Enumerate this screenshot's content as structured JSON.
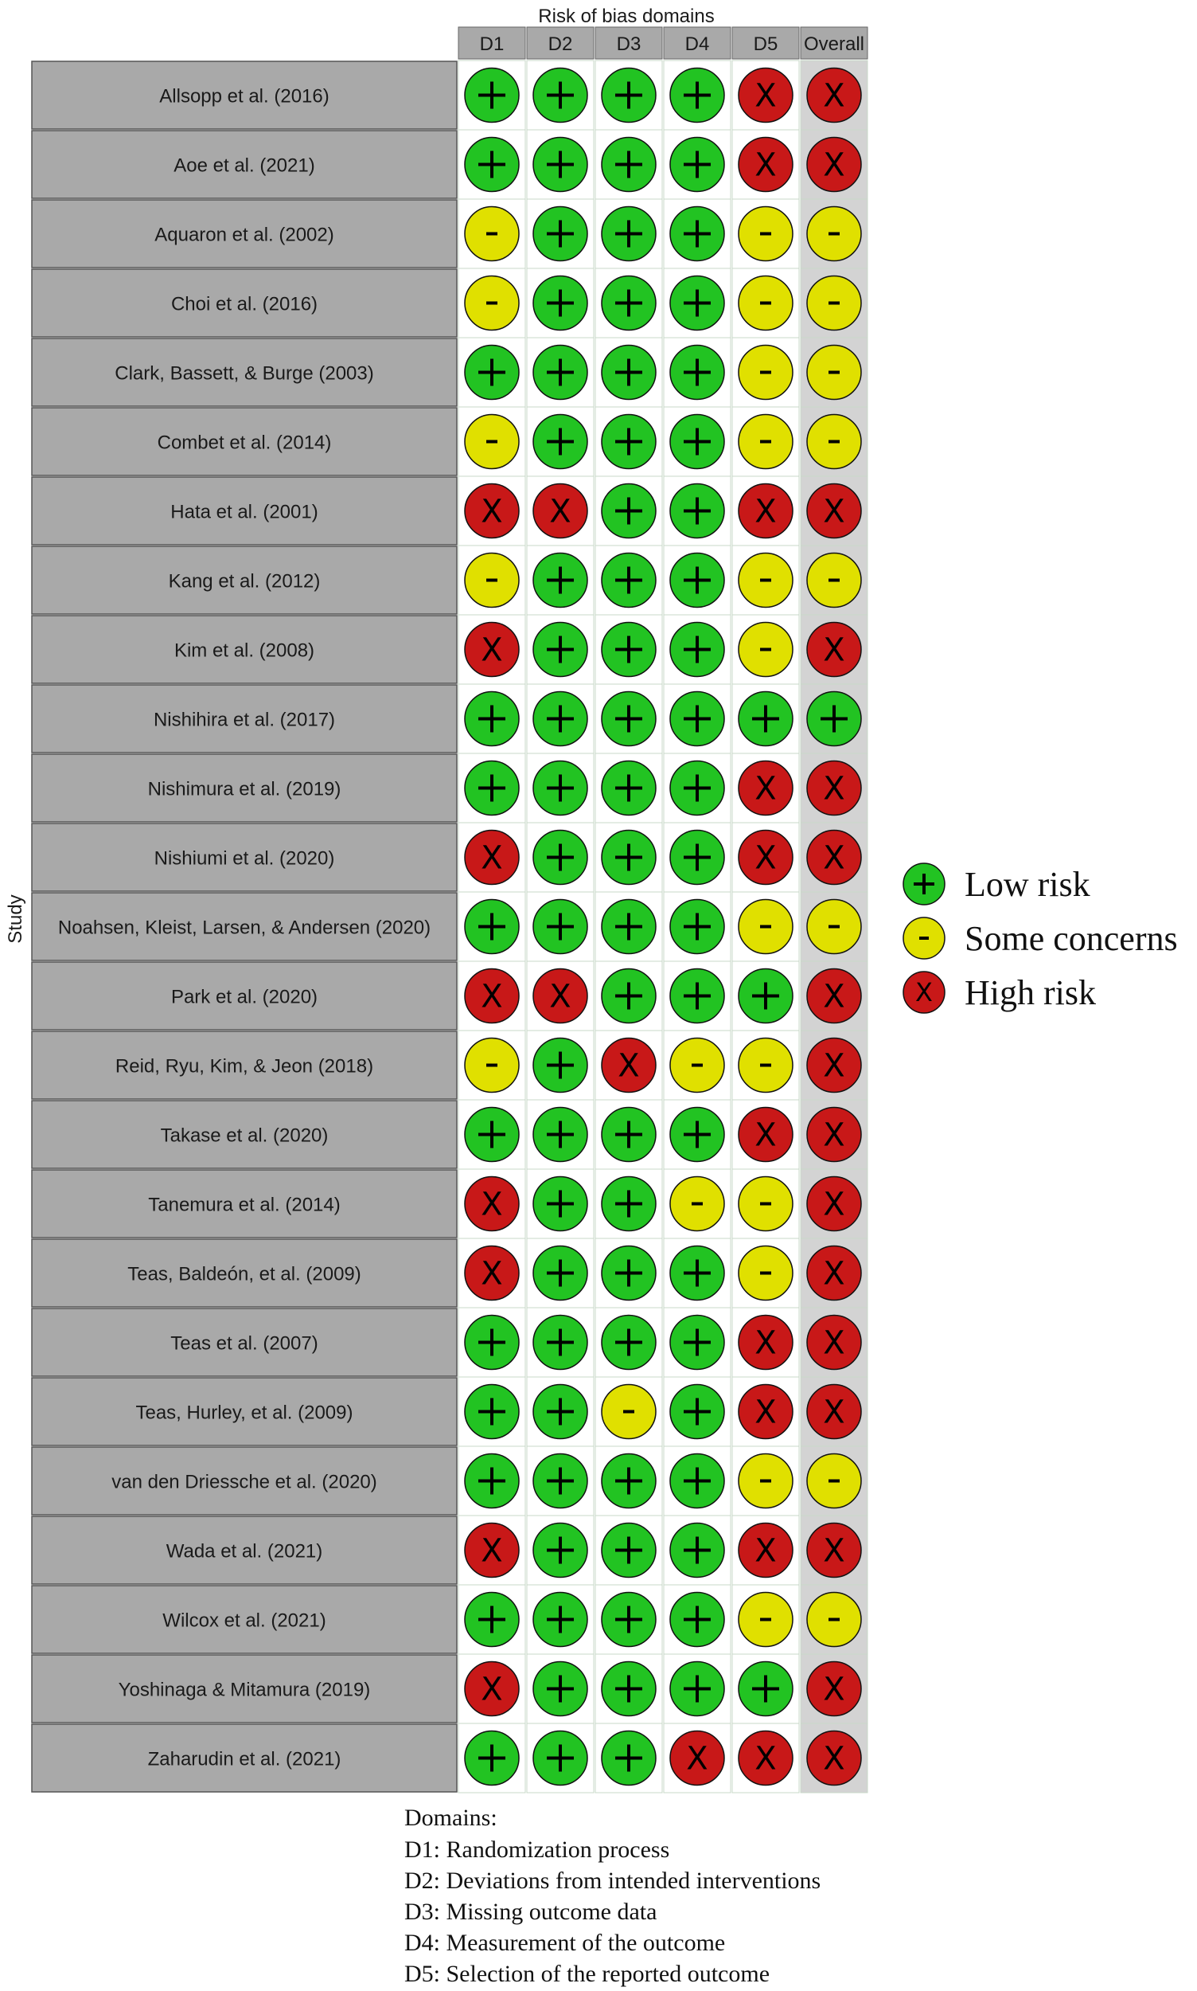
{
  "chart_data": {
    "type": "table",
    "title": "Risk of bias domains",
    "ylabel": "Study",
    "domains": [
      "D1",
      "D2",
      "D3",
      "D4",
      "D5",
      "Overall"
    ],
    "studies": [
      {
        "name": "Allsopp et al. (2016)",
        "ratings": [
          "low",
          "low",
          "low",
          "low",
          "high",
          "high"
        ]
      },
      {
        "name": "Aoe et al. (2021)",
        "ratings": [
          "low",
          "low",
          "low",
          "low",
          "high",
          "high"
        ]
      },
      {
        "name": "Aquaron et al. (2002)",
        "ratings": [
          "some",
          "low",
          "low",
          "low",
          "some",
          "some"
        ]
      },
      {
        "name": "Choi et al. (2016)",
        "ratings": [
          "some",
          "low",
          "low",
          "low",
          "some",
          "some"
        ]
      },
      {
        "name": "Clark, Bassett, & Burge (2003)",
        "ratings": [
          "low",
          "low",
          "low",
          "low",
          "some",
          "some"
        ]
      },
      {
        "name": "Combet et al. (2014)",
        "ratings": [
          "some",
          "low",
          "low",
          "low",
          "some",
          "some"
        ]
      },
      {
        "name": "Hata et al. (2001)",
        "ratings": [
          "high",
          "high",
          "low",
          "low",
          "high",
          "high"
        ]
      },
      {
        "name": "Kang et al. (2012)",
        "ratings": [
          "some",
          "low",
          "low",
          "low",
          "some",
          "some"
        ]
      },
      {
        "name": "Kim et al. (2008)",
        "ratings": [
          "high",
          "low",
          "low",
          "low",
          "some",
          "high"
        ]
      },
      {
        "name": "Nishihira et al. (2017)",
        "ratings": [
          "low",
          "low",
          "low",
          "low",
          "low",
          "low"
        ]
      },
      {
        "name": "Nishimura et al. (2019)",
        "ratings": [
          "low",
          "low",
          "low",
          "low",
          "high",
          "high"
        ]
      },
      {
        "name": "Nishiumi et al. (2020)",
        "ratings": [
          "high",
          "low",
          "low",
          "low",
          "high",
          "high"
        ]
      },
      {
        "name": "Noahsen, Kleist, Larsen, & Andersen (2020)",
        "ratings": [
          "low",
          "low",
          "low",
          "low",
          "some",
          "some"
        ]
      },
      {
        "name": "Park et al. (2020)",
        "ratings": [
          "high",
          "high",
          "low",
          "low",
          "low",
          "high"
        ]
      },
      {
        "name": "Reid, Ryu, Kim, & Jeon (2018)",
        "ratings": [
          "some",
          "low",
          "high",
          "some",
          "some",
          "high"
        ]
      },
      {
        "name": "Takase et al. (2020)",
        "ratings": [
          "low",
          "low",
          "low",
          "low",
          "high",
          "high"
        ]
      },
      {
        "name": "Tanemura et al. (2014)",
        "ratings": [
          "high",
          "low",
          "low",
          "some",
          "some",
          "high"
        ]
      },
      {
        "name": "Teas, Baldeón, et al. (2009)",
        "ratings": [
          "high",
          "low",
          "low",
          "low",
          "some",
          "high"
        ]
      },
      {
        "name": "Teas et al. (2007)",
        "ratings": [
          "low",
          "low",
          "low",
          "low",
          "high",
          "high"
        ]
      },
      {
        "name": "Teas, Hurley, et al. (2009)",
        "ratings": [
          "low",
          "low",
          "some",
          "low",
          "high",
          "high"
        ]
      },
      {
        "name": "van den Driessche et al. (2020)",
        "ratings": [
          "low",
          "low",
          "low",
          "low",
          "some",
          "some"
        ]
      },
      {
        "name": "Wada et al. (2021)",
        "ratings": [
          "high",
          "low",
          "low",
          "low",
          "high",
          "high"
        ]
      },
      {
        "name": "Wilcox et al. (2021)",
        "ratings": [
          "low",
          "low",
          "low",
          "low",
          "some",
          "some"
        ]
      },
      {
        "name": "Yoshinaga & Mitamura (2019)",
        "ratings": [
          "high",
          "low",
          "low",
          "low",
          "low",
          "high"
        ]
      },
      {
        "name": "Zaharudin et al. (2021)",
        "ratings": [
          "low",
          "low",
          "low",
          "high",
          "high",
          "high"
        ]
      }
    ],
    "judgements": {
      "low": {
        "label": "Low risk",
        "symbol": "+",
        "color": "#22c322"
      },
      "some": {
        "label": "Some concerns",
        "symbol": "-",
        "color": "#e0e000"
      },
      "high": {
        "label": "High risk",
        "symbol": "X",
        "color": "#c81818"
      }
    },
    "legend_position": "right",
    "footnote": {
      "heading": "Domains:",
      "items": [
        "D1: Randomization process",
        "D2: Deviations from intended interventions",
        "D3: Missing outcome data",
        "D4: Measurement of the outcome",
        "D5: Selection of the reported outcome"
      ]
    }
  },
  "colors": {
    "header_fill": "#a9a9a9",
    "study_fill": "#a9a9a9",
    "overall_fill": "#d3d3d3",
    "cell_border": "#c8d8c8",
    "circle_stroke": "#111111"
  }
}
